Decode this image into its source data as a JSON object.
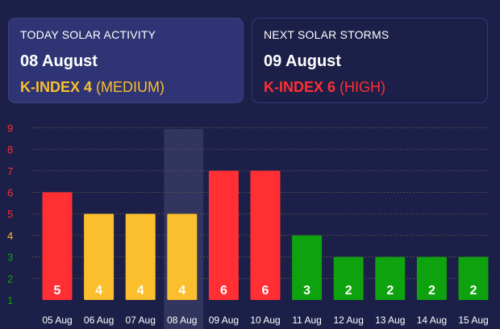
{
  "today": {
    "label": "TODAY SOLAR ACTIVITY",
    "date": "08 August",
    "kindex": "K-INDEX 4",
    "level": "(MEDIUM)",
    "color": "#fbbf2e"
  },
  "next": {
    "label": "NEXT SOLAR STORMS",
    "date": "09 August",
    "kindex": "K-INDEX 6",
    "level": "(HIGH)",
    "color": "#ff2f33"
  },
  "chart_data": {
    "type": "bar",
    "categories": [
      "05 Aug",
      "06 Aug",
      "07 Aug",
      "08 Aug",
      "09 Aug",
      "10 Aug",
      "11 Aug",
      "12 Aug",
      "13 Aug",
      "14 Aug",
      "15 Aug"
    ],
    "values": [
      5,
      4,
      4,
      4,
      6,
      6,
      3,
      2,
      2,
      2,
      2
    ],
    "highlight_category": "08 Aug",
    "y_ticks": [
      1,
      2,
      3,
      4,
      5,
      6,
      7,
      8,
      9
    ],
    "ylim": [
      1,
      9
    ],
    "grid": true,
    "colors": {
      "low": "#0ea30e",
      "medium": "#fbbf2e",
      "high": "#ff2f33",
      "grid": "#5a4a4a",
      "highlight": "#3a3e66"
    },
    "tick_colors": {
      "1": "#0ea30e",
      "2": "#0ea30e",
      "3": "#0ea30e",
      "4": "#fbbf2e",
      "5": "#ff2f33",
      "6": "#ff2f33",
      "7": "#ff2f33",
      "8": "#ff2f33",
      "9": "#ff2f33"
    }
  }
}
